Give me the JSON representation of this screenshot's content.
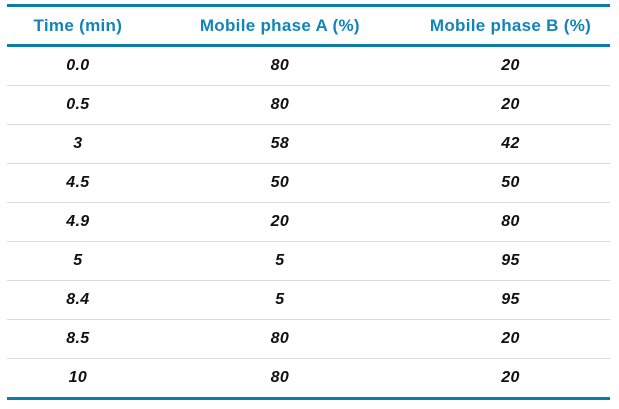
{
  "table": {
    "columns": [
      {
        "label": "Time (min)"
      },
      {
        "label": "Mobile phase A (%)"
      },
      {
        "label": "Mobile phase B (%)"
      }
    ],
    "rows": [
      [
        "0.0",
        "80",
        "20"
      ],
      [
        "0.5",
        "80",
        "20"
      ],
      [
        "3",
        "58",
        "42"
      ],
      [
        "4.5",
        "50",
        "50"
      ],
      [
        "4.9",
        "20",
        "80"
      ],
      [
        "5",
        "5",
        "95"
      ],
      [
        "8.4",
        "5",
        "95"
      ],
      [
        "8.5",
        "80",
        "20"
      ],
      [
        "10",
        "80",
        "20"
      ]
    ],
    "colors": {
      "accent_line": "#0c7da6",
      "header_text": "#1483b8",
      "row_divider": "#d9d9d9",
      "body_text": "#111111"
    }
  }
}
